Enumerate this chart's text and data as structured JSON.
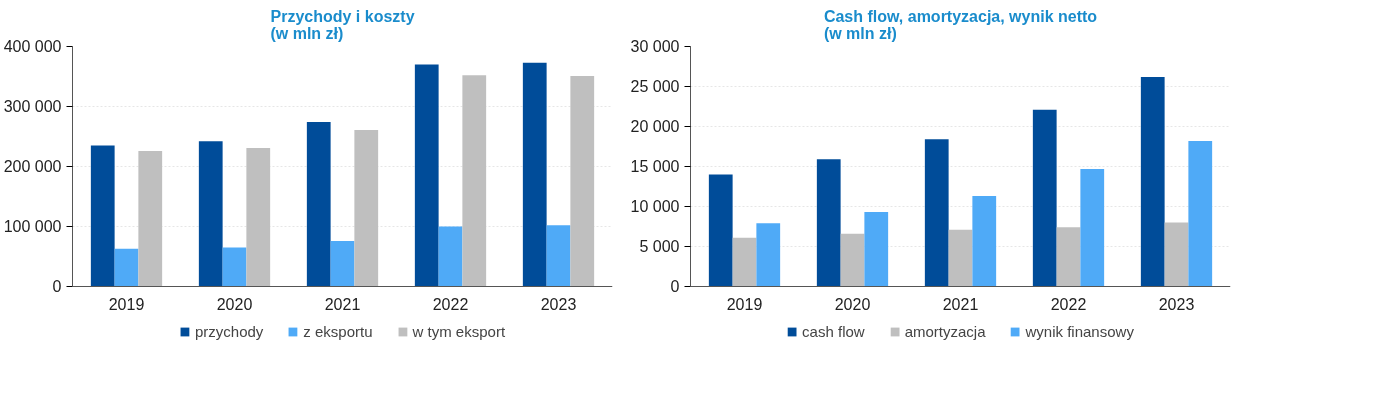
{
  "chart_data": [
    {
      "type": "bar",
      "title": "Przychody i koszty\n(w mln zł)",
      "categories": [
        "2019",
        "2020",
        "2021",
        "2022",
        "2023"
      ],
      "series": [
        {
          "name": "przychody",
          "color": "#004c99",
          "values": [
            235000,
            242000,
            274000,
            370000,
            373000
          ]
        },
        {
          "name": "z eksportu",
          "color": "#4faaf7",
          "values": [
            63000,
            65000,
            76000,
            100000,
            102000
          ]
        },
        {
          "name": "w tym eksport",
          "color": "#bfbfbf",
          "values": [
            226000,
            231000,
            261000,
            352000,
            351000
          ]
        }
      ],
      "ylim": [
        0,
        400000
      ],
      "yticks": [
        0,
        {
          "value": 100000,
          "label": "100 000"
        },
        {
          "value": 200000,
          "label": "200 000"
        },
        {
          "value": 300000,
          "label": "300 000"
        },
        {
          "value": 400000,
          "label": "400 000"
        }
      ],
      "grid": "y",
      "legend": "bottom"
    },
    {
      "type": "bar",
      "title": "Cash flow, amortyzacja, wynik netto\n(w mln zł)",
      "categories": [
        "2019",
        "2020",
        "2021",
        "2022",
        "2023"
      ],
      "series": [
        {
          "name": "cash flow",
          "color": "#004c99",
          "values": [
            14000,
            15900,
            18400,
            22100,
            26200
          ]
        },
        {
          "name": "amortyzacja",
          "color": "#bfbfbf",
          "values": [
            6100,
            6600,
            7100,
            7400,
            8000
          ]
        },
        {
          "name": "wynik finansowy",
          "color": "#4faaf7",
          "values": [
            7900,
            9300,
            11300,
            14700,
            18200
          ]
        }
      ],
      "ylim": [
        0,
        30000
      ],
      "yticks": [
        0,
        {
          "value": 5000,
          "label": "5 000"
        },
        {
          "value": 10000,
          "label": "10 000"
        },
        {
          "value": 15000,
          "label": "15 000"
        },
        {
          "value": 20000,
          "label": "20 000"
        },
        {
          "value": 25000,
          "label": "25 000"
        },
        {
          "value": 30000,
          "label": "30 000"
        }
      ],
      "grid": "y",
      "legend": "bottom"
    }
  ]
}
